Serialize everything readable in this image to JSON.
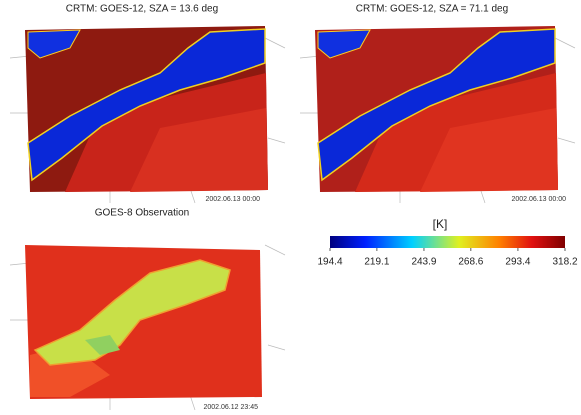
{
  "panels": [
    {
      "title": "CRTM: GOES-12, SZA = 13.6 deg",
      "timestamp": "2002.06.13 00:00"
    },
    {
      "title": "CRTM: GOES-12, SZA = 71.1 deg",
      "timestamp": "2002.06.13 00:00"
    },
    {
      "title": "GOES-8 Observation",
      "timestamp": "2002.06.12 23:45"
    }
  ],
  "colorbar": {
    "label": "[K]",
    "lim": [
      194.4,
      318.2
    ],
    "ticks": [
      194.4,
      219.1,
      243.9,
      268.6,
      293.4,
      318.2
    ]
  }
}
